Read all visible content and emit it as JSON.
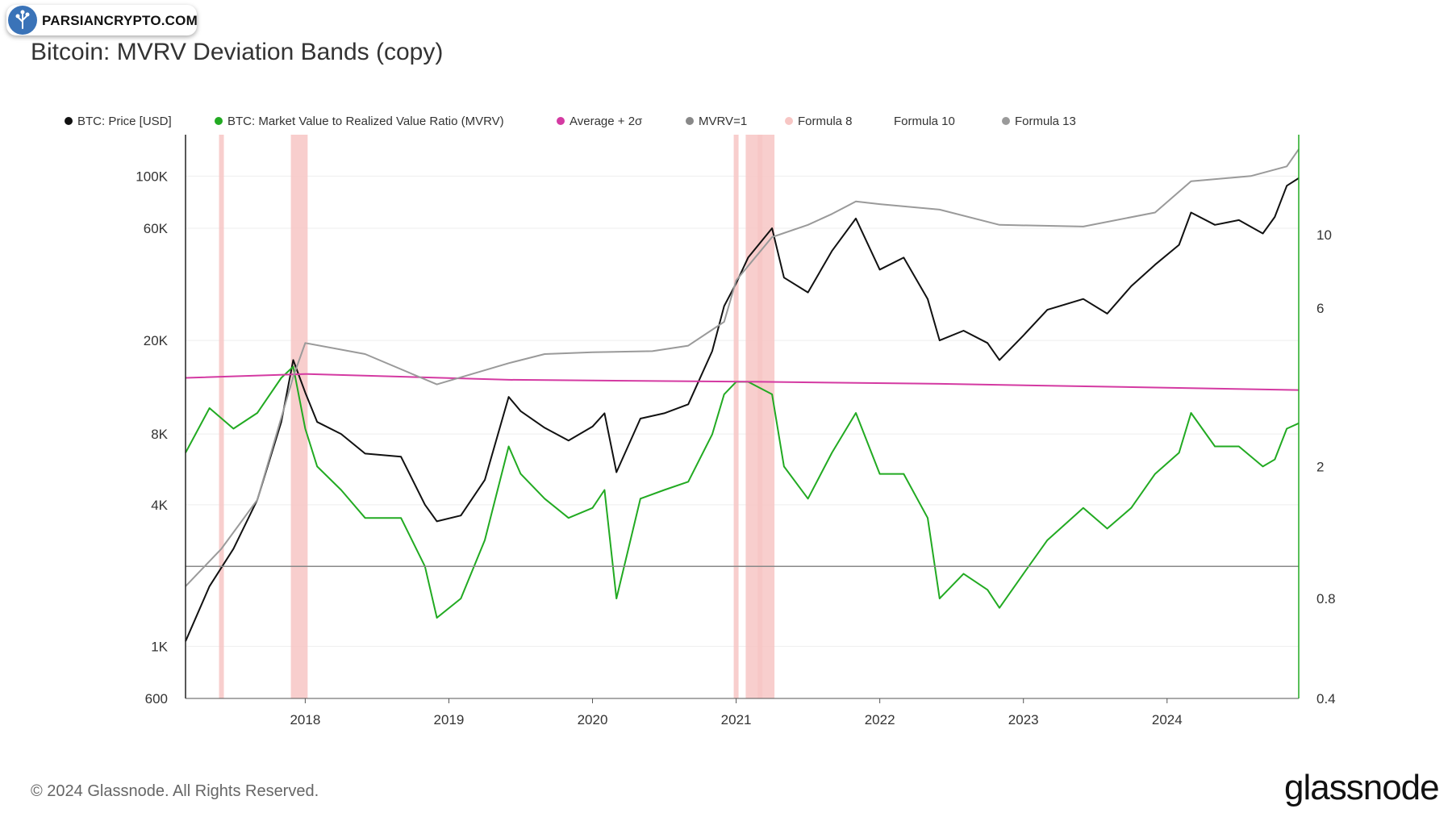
{
  "watermark": {
    "text": "PARSIANCRYPTO.COM"
  },
  "title": "Bitcoin: MVRV Deviation Bands (copy)",
  "legend": [
    {
      "label": "BTC: Price [USD]",
      "color": "#111111"
    },
    {
      "label": "BTC: Market Value to Realized Value Ratio (MVRV)",
      "color": "#22aa22"
    },
    {
      "label": "Average + 2σ",
      "color": "#d43aa2"
    },
    {
      "label": "MVRV=1",
      "color": "#888888"
    },
    {
      "label": "Formula 8",
      "color": "#f7c6c4"
    },
    {
      "label": "Formula 10",
      "color": ""
    },
    {
      "label": "Formula 13",
      "color": "#9a9a9a"
    }
  ],
  "footer": {
    "copyright": "© 2024 Glassnode. All Rights Reserved.",
    "logo": "glassnode"
  },
  "chart_data": {
    "type": "line",
    "grid": true,
    "x_ticks": [
      "2018",
      "2019",
      "2020",
      "2021",
      "2022",
      "2023",
      "2024"
    ],
    "xlim": [
      "2017-03",
      "2024-12"
    ],
    "y_left": {
      "scale": "log",
      "range": [
        600,
        150000
      ],
      "tick_labels": [
        "100K",
        "60K",
        "20K",
        "8K",
        "4K",
        "1K",
        "600"
      ],
      "tick_values": [
        100000,
        60000,
        20000,
        8000,
        4000,
        1000,
        600
      ]
    },
    "y_right": {
      "scale": "log",
      "range": [
        0.4,
        20
      ],
      "tick_labels": [
        "10",
        "6",
        "2",
        "0.8",
        "0.4"
      ],
      "tick_values": [
        10,
        6,
        2,
        0.8,
        0.4
      ]
    },
    "series": [
      {
        "name": "BTC: Price [USD]",
        "axis": "left",
        "color": "#111111",
        "x": [
          "2017-03",
          "2017-05",
          "2017-07",
          "2017-09",
          "2017-11",
          "2017-12",
          "2018-01",
          "2018-02",
          "2018-04",
          "2018-06",
          "2018-09",
          "2018-11",
          "2018-12",
          "2019-02",
          "2019-04",
          "2019-06",
          "2019-07",
          "2019-09",
          "2019-11",
          "2020-01",
          "2020-02",
          "2020-03",
          "2020-05",
          "2020-07",
          "2020-09",
          "2020-11",
          "2020-12",
          "2021-01",
          "2021-02",
          "2021-04",
          "2021-05",
          "2021-07",
          "2021-09",
          "2021-11",
          "2022-01",
          "2022-03",
          "2022-05",
          "2022-06",
          "2022-08",
          "2022-10",
          "2022-11",
          "2023-01",
          "2023-03",
          "2023-06",
          "2023-08",
          "2023-10",
          "2023-12",
          "2024-02",
          "2024-03",
          "2024-05",
          "2024-07",
          "2024-09",
          "2024-10",
          "2024-11",
          "2024-12"
        ],
        "y": [
          1050,
          1800,
          2600,
          4200,
          9000,
          16500,
          12000,
          9000,
          8000,
          6600,
          6400,
          4000,
          3400,
          3600,
          5100,
          11500,
          10000,
          8500,
          7500,
          8600,
          9800,
          5500,
          9300,
          9800,
          10700,
          18000,
          28000,
          35000,
          45000,
          60000,
          37000,
          32000,
          48000,
          66000,
          40000,
          45000,
          30000,
          20000,
          22000,
          19500,
          16500,
          21000,
          27000,
          30000,
          26000,
          34000,
          42000,
          51000,
          70000,
          62000,
          65000,
          57000,
          67000,
          91000,
          98000
        ]
      },
      {
        "name": "BTC: Market Value to Realized Value Ratio (MVRV)",
        "axis": "right",
        "color": "#22aa22",
        "x": [
          "2017-03",
          "2017-05",
          "2017-07",
          "2017-09",
          "2017-11",
          "2017-12",
          "2018-01",
          "2018-02",
          "2018-04",
          "2018-06",
          "2018-09",
          "2018-11",
          "2018-12",
          "2019-02",
          "2019-04",
          "2019-06",
          "2019-07",
          "2019-09",
          "2019-11",
          "2020-01",
          "2020-02",
          "2020-03",
          "2020-05",
          "2020-07",
          "2020-09",
          "2020-11",
          "2020-12",
          "2021-01",
          "2021-02",
          "2021-04",
          "2021-05",
          "2021-07",
          "2021-09",
          "2021-11",
          "2022-01",
          "2022-03",
          "2022-05",
          "2022-06",
          "2022-08",
          "2022-10",
          "2022-11",
          "2023-01",
          "2023-03",
          "2023-06",
          "2023-08",
          "2023-10",
          "2023-12",
          "2024-02",
          "2024-03",
          "2024-05",
          "2024-07",
          "2024-09",
          "2024-10",
          "2024-11",
          "2024-12"
        ],
        "y": [
          2.2,
          3.0,
          2.6,
          2.9,
          3.7,
          4.0,
          2.6,
          2.0,
          1.7,
          1.4,
          1.4,
          1.0,
          0.7,
          0.8,
          1.2,
          2.3,
          1.9,
          1.6,
          1.4,
          1.5,
          1.7,
          0.8,
          1.6,
          1.7,
          1.8,
          2.5,
          3.3,
          3.6,
          3.6,
          3.3,
          2.0,
          1.6,
          2.2,
          2.9,
          1.9,
          1.9,
          1.4,
          0.8,
          0.95,
          0.85,
          0.75,
          0.95,
          1.2,
          1.5,
          1.3,
          1.5,
          1.9,
          2.2,
          2.9,
          2.3,
          2.3,
          2.0,
          2.1,
          2.6,
          2.7
        ]
      },
      {
        "name": "Average + 2σ",
        "axis": "right",
        "color": "#d43aa2",
        "x": [
          "2017-03",
          "2018-01",
          "2019-06",
          "2021-03",
          "2022-06",
          "2024-12"
        ],
        "y": [
          3.7,
          3.8,
          3.65,
          3.6,
          3.55,
          3.4
        ]
      },
      {
        "name": "MVRV=1",
        "axis": "right",
        "color": "#888888",
        "x": [
          "2017-03",
          "2024-12"
        ],
        "y": [
          1,
          1
        ]
      },
      {
        "name": "Formula 13",
        "axis": "left",
        "color": "#9a9a9a",
        "x": [
          "2017-03",
          "2017-06",
          "2017-09",
          "2017-12",
          "2018-01",
          "2018-06",
          "2018-12",
          "2019-06",
          "2019-09",
          "2020-01",
          "2020-06",
          "2020-09",
          "2020-12",
          "2021-01",
          "2021-04",
          "2021-07",
          "2021-09",
          "2021-11",
          "2022-01",
          "2022-06",
          "2022-11",
          "2023-06",
          "2023-12",
          "2024-03",
          "2024-08",
          "2024-11",
          "2024-12"
        ],
        "y": [
          1800,
          2600,
          4200,
          14000,
          19500,
          17500,
          13000,
          16000,
          17500,
          17800,
          18000,
          19000,
          24000,
          36000,
          55000,
          62000,
          69000,
          78000,
          76000,
          72000,
          62000,
          61000,
          70000,
          95000,
          100000,
          110000,
          130000
        ]
      }
    ],
    "highlight_ranges": [
      {
        "name": "Formula 8",
        "color": "#f7c6c4",
        "ranges": [
          [
            "2017-06",
            "2017-06"
          ],
          [
            "2017-12",
            "2018-01"
          ],
          [
            "2021-01",
            "2021-01"
          ],
          [
            "2021-02",
            "2021-03"
          ],
          [
            "2021-03",
            "2021-04"
          ]
        ]
      }
    ]
  }
}
